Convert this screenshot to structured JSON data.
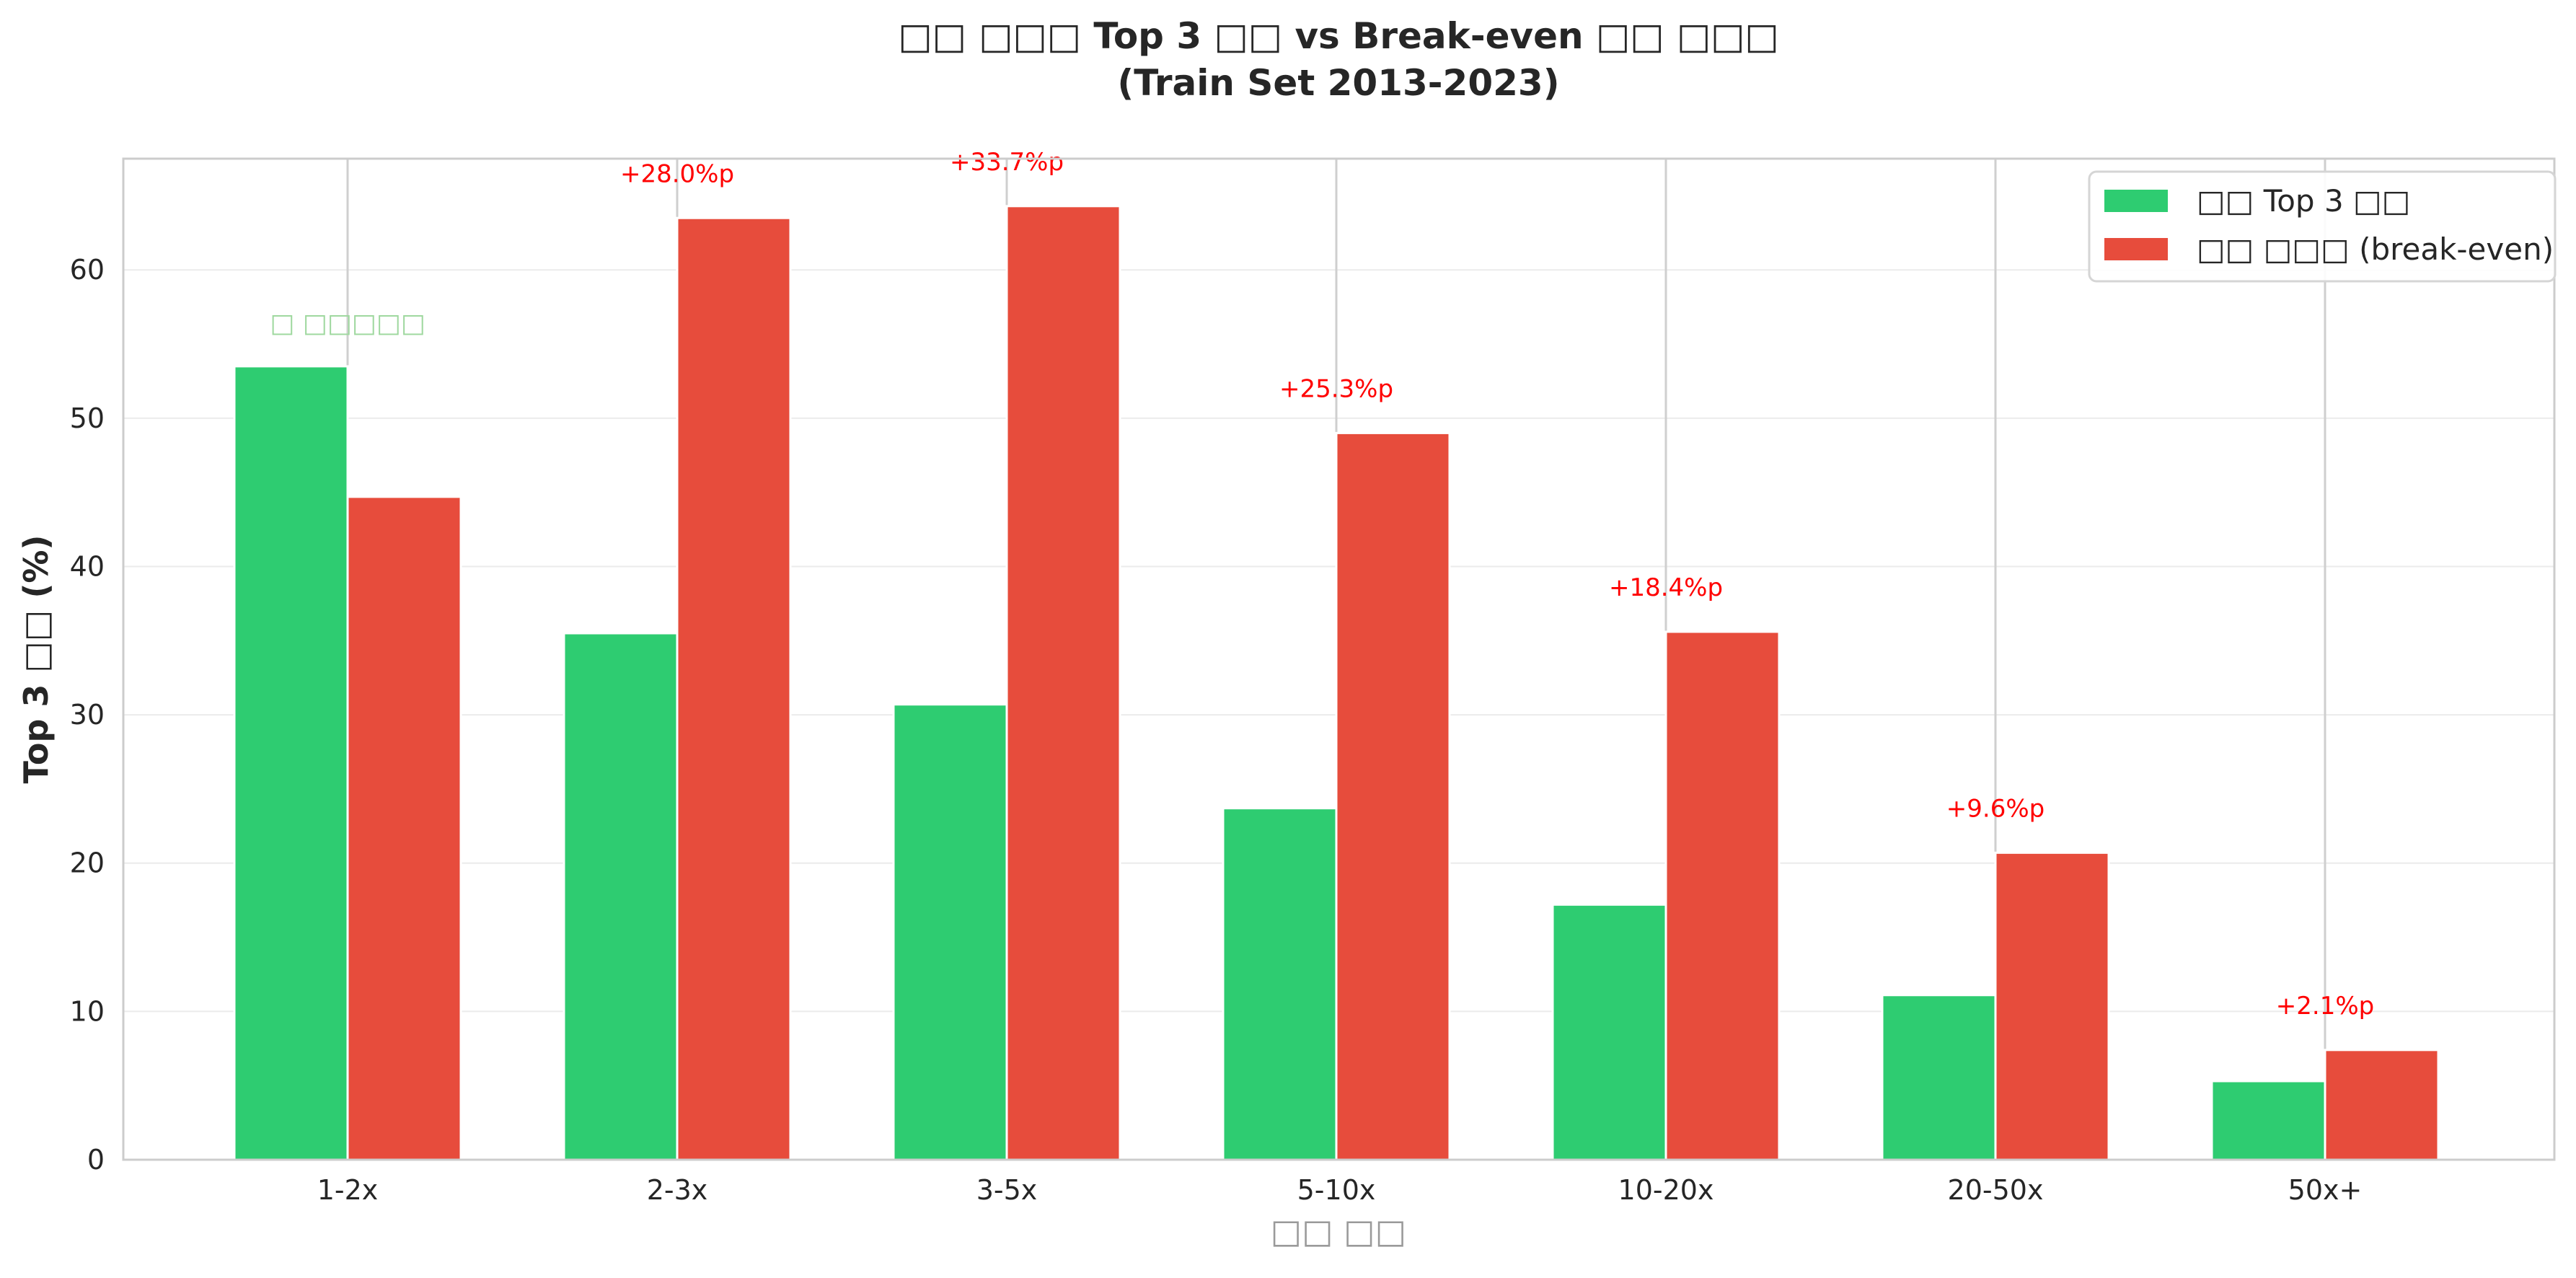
{
  "chart_data": {
    "type": "bar",
    "title_line1": "□□ □□□ Top 3 □□ vs Break-even □□ □□□",
    "title_line2": "(Train Set 2013-2023)",
    "ylabel": "Top 3 □□ (%)",
    "xlabel": "□□ □□",
    "categories": [
      "1-2x",
      "2-3x",
      "3-5x",
      "5-10x",
      "10-20x",
      "20-50x",
      "50x+"
    ],
    "series": [
      {
        "name": "□□ Top 3 □□",
        "color": "#2ecc71",
        "values": [
          53.5,
          35.5,
          30.7,
          23.7,
          17.2,
          11.1,
          5.3
        ]
      },
      {
        "name": "□□ □□□ (break-even)",
        "color": "#e74c3c",
        "values": [
          44.7,
          63.5,
          64.3,
          49.0,
          35.6,
          20.7,
          7.4
        ]
      }
    ],
    "ylim": [
      0,
      67.5
    ],
    "yticks": [
      0,
      10,
      20,
      30,
      40,
      50,
      60
    ],
    "grid": true,
    "legend_position": "top-right",
    "annotations": [
      "",
      "+28.0%p",
      "+33.7%p",
      "+25.3%p",
      "+18.4%p",
      "+9.6%p",
      "+2.1%p"
    ],
    "annotation_color": "#ff0000",
    "note": "□ □□□□□",
    "note_color": "#9fd89f"
  }
}
